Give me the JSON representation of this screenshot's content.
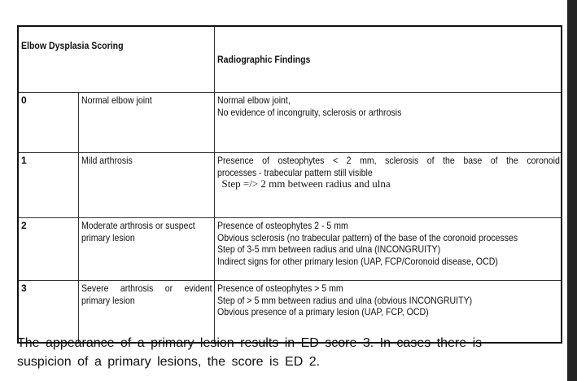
{
  "table": {
    "header": {
      "scoring": "Elbow Dysplasia Scoring",
      "findings": "Radiographic Findings"
    },
    "rows": [
      {
        "score": "0",
        "label": "Normal elbow joint",
        "findings": [
          "Normal elbow joint,",
          "No evidence of incongruity, sclerosis or arthrosis"
        ]
      },
      {
        "score": "1",
        "label": "Mild arthrosis",
        "findings": [
          "Presence of osteophytes < 2 mm,  sclerosis of the base of the coronoid",
          "processes - trabecular pattern still visible",
          "Step =/> 2 mm between radius and ulna"
        ]
      },
      {
        "score": "2",
        "label": "Moderate arthrosis or suspect primary lesion",
        "findings": [
          "Presence of osteophytes 2 - 5 mm",
          "Obvious sclerosis (no trabecular pattern) of the base of the coronoid processes",
          "Step of 3-5 mm between radius and ulna (INCONGRUITY)",
          "Indirect signs for other primary lesion (UAP, FCP/Coronoid disease, OCD)"
        ]
      },
      {
        "score": "3",
        "label": "Severe arthrosis or evident primary lesion",
        "findings": [
          "Presence of osteophytes > 5 mm",
          "Step of > 5 mm between radius and ulna (obvious INCONGRUITY)",
          "Obvious presence of a primary lesion (UAP, FCP, OCD)"
        ]
      }
    ]
  },
  "note": "The appearance of a primary lesion results in ED score 3. In cases there is suspicion of a primary lesions, the score is ED 2."
}
